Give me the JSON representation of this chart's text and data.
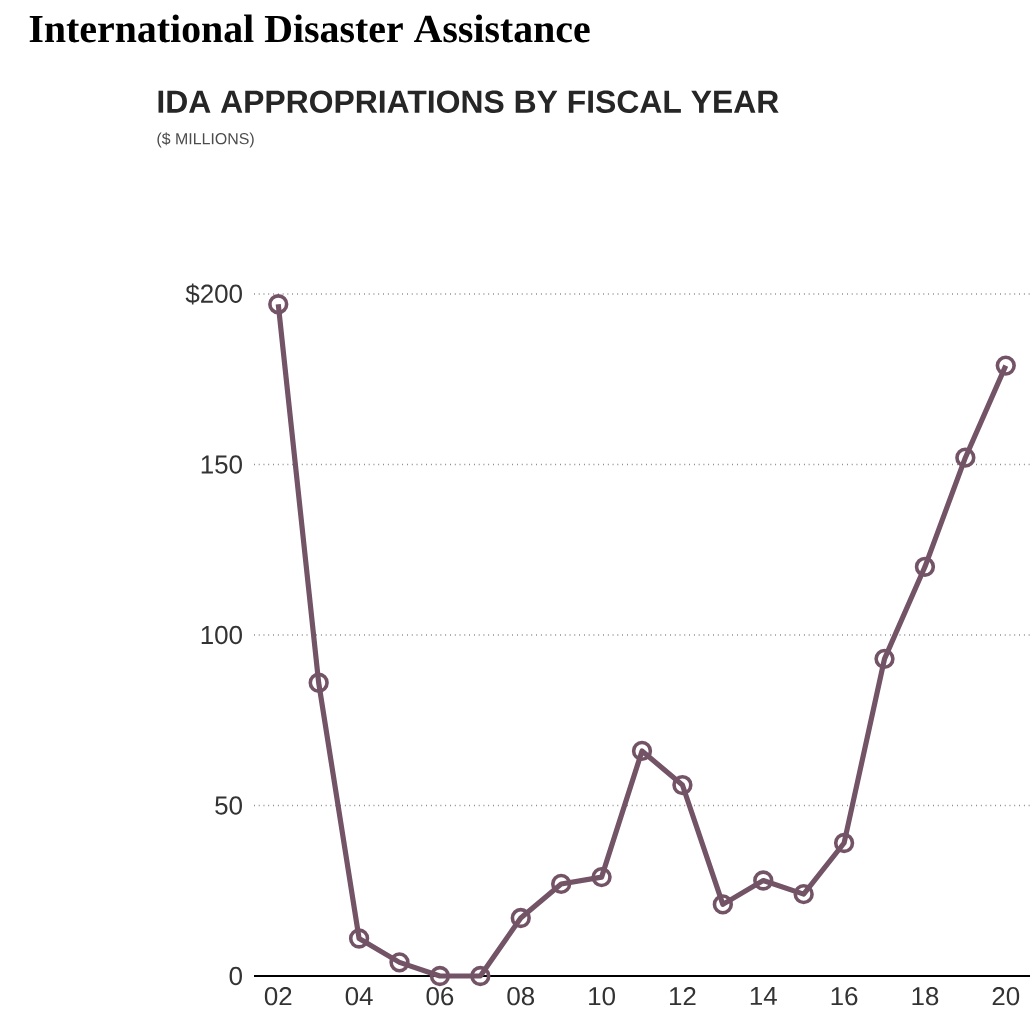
{
  "chart_data": {
    "type": "line",
    "title": "International Disaster Assistance",
    "subtitle": "IDA APPROPRIATIONS BY FISCAL YEAR",
    "annotations": [
      "($ MILLIONS)"
    ],
    "x": [
      2002,
      2003,
      2004,
      2005,
      2006,
      2007,
      2008,
      2009,
      2010,
      2011,
      2012,
      2013,
      2014,
      2015,
      2016,
      2017,
      2018,
      2019,
      2020
    ],
    "values": [
      197,
      86,
      11,
      4,
      0,
      0,
      17,
      27,
      29,
      66,
      56,
      21,
      28,
      24,
      39,
      93,
      120,
      152,
      179
    ],
    "color": "#735366",
    "marker": "circle",
    "line_style": "solid",
    "grid": "y",
    "xlim": [
      2001.4,
      2020.6
    ],
    "ylim": [
      0,
      200
    ],
    "xticks": [
      {
        "value": 2002,
        "label": "02"
      },
      {
        "value": 2004,
        "label": "04"
      },
      {
        "value": 2006,
        "label": "06"
      },
      {
        "value": 2008,
        "label": "08"
      },
      {
        "value": 2010,
        "label": "10"
      },
      {
        "value": 2012,
        "label": "12"
      },
      {
        "value": 2014,
        "label": "14"
      },
      {
        "value": 2016,
        "label": "16"
      },
      {
        "value": 2018,
        "label": "18"
      },
      {
        "value": 2020,
        "label": "20"
      }
    ],
    "yticks": [
      0,
      50,
      100,
      {
        "value": 150,
        "label": "150"
      },
      {
        "value": 200,
        "label": "$200"
      }
    ]
  }
}
